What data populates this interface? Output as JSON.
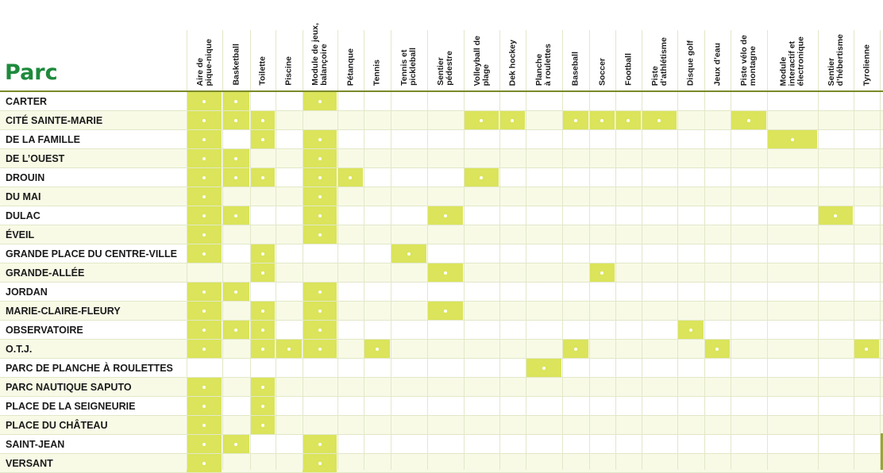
{
  "table": {
    "title": "Parc",
    "columns": [
      {
        "key": "pique",
        "lines": [
          "Aire de",
          "pique-nique"
        ]
      },
      {
        "key": "basket",
        "lines": [
          "Basketball"
        ]
      },
      {
        "key": "toilette",
        "lines": [
          "Toilette"
        ]
      },
      {
        "key": "piscine",
        "lines": [
          "Piscine"
        ]
      },
      {
        "key": "module",
        "lines": [
          "Module de jeux,",
          "balançoire"
        ]
      },
      {
        "key": "petanque",
        "lines": [
          "Pétanque"
        ]
      },
      {
        "key": "tennis",
        "lines": [
          "Tennis"
        ]
      },
      {
        "key": "pickle",
        "lines": [
          "Tennis et",
          "pickleball"
        ]
      },
      {
        "key": "sentier",
        "lines": [
          "Sentier",
          "pédestre"
        ]
      },
      {
        "key": "volley",
        "lines": [
          "Volleyball de",
          "plage"
        ]
      },
      {
        "key": "dek",
        "lines": [
          "Dek hockey"
        ]
      },
      {
        "key": "planche",
        "lines": [
          "Planche",
          "à roulettes"
        ]
      },
      {
        "key": "baseball",
        "lines": [
          "Baseball"
        ]
      },
      {
        "key": "soccer",
        "lines": [
          "Soccer"
        ]
      },
      {
        "key": "football",
        "lines": [
          "Football"
        ]
      },
      {
        "key": "piste",
        "lines": [
          "Piste",
          "d’athlétisme"
        ]
      },
      {
        "key": "golf",
        "lines": [
          "Disque golf"
        ]
      },
      {
        "key": "eau",
        "lines": [
          "Jeux d’eau"
        ]
      },
      {
        "key": "velo",
        "lines": [
          "Piste vélo de",
          "montagne"
        ]
      },
      {
        "key": "moduleint",
        "lines": [
          "Module",
          "interactif et",
          "électronique"
        ]
      },
      {
        "key": "hebert",
        "lines": [
          "Sentier",
          "d’hébertisme"
        ]
      },
      {
        "key": "tyro",
        "lines": [
          "Tyrolienne"
        ]
      }
    ],
    "rows": [
      {
        "name": "CARTER",
        "marks": [
          0,
          1,
          4
        ]
      },
      {
        "name": "CITÉ SAINTE-MARIE",
        "marks": [
          0,
          1,
          2,
          9,
          10,
          12,
          13,
          14,
          15,
          18
        ]
      },
      {
        "name": "DE LA FAMILLE",
        "marks": [
          0,
          2,
          4,
          19
        ]
      },
      {
        "name": "DE L’OUEST",
        "marks": [
          0,
          1,
          4
        ]
      },
      {
        "name": "DROUIN",
        "marks": [
          0,
          1,
          2,
          4,
          5,
          9
        ]
      },
      {
        "name": "DU MAI",
        "marks": [
          0,
          4
        ]
      },
      {
        "name": "DULAC",
        "marks": [
          0,
          1,
          4,
          8,
          20
        ]
      },
      {
        "name": "ÉVEIL",
        "marks": [
          0,
          4
        ]
      },
      {
        "name": "GRANDE PLACE DU CENTRE-VILLE",
        "marks": [
          0,
          2,
          7
        ]
      },
      {
        "name": "GRANDE-ALLÉE",
        "marks": [
          2,
          8,
          13
        ]
      },
      {
        "name": "JORDAN",
        "marks": [
          0,
          1,
          4
        ]
      },
      {
        "name": "MARIE-CLAIRE-FLEURY",
        "marks": [
          0,
          2,
          4,
          8
        ]
      },
      {
        "name": "OBSERVATOIRE",
        "marks": [
          0,
          1,
          2,
          4,
          16
        ]
      },
      {
        "name": "O.T.J.",
        "marks": [
          0,
          2,
          3,
          4,
          6,
          12,
          17,
          21
        ]
      },
      {
        "name": "PARC DE PLANCHE À ROULETTES",
        "marks": [
          11
        ]
      },
      {
        "name": "PARC NAUTIQUE SAPUTO",
        "marks": [
          0,
          2
        ]
      },
      {
        "name": "PLACE DE LA SEIGNEURIE",
        "marks": [
          0,
          2
        ]
      },
      {
        "name": "PLACE DU CHÂTEAU",
        "marks": [
          0,
          2
        ]
      },
      {
        "name": "SAINT-JEAN",
        "marks": [
          0,
          1,
          4
        ]
      },
      {
        "name": "VERSANT",
        "marks": [
          0,
          4
        ]
      }
    ]
  }
}
